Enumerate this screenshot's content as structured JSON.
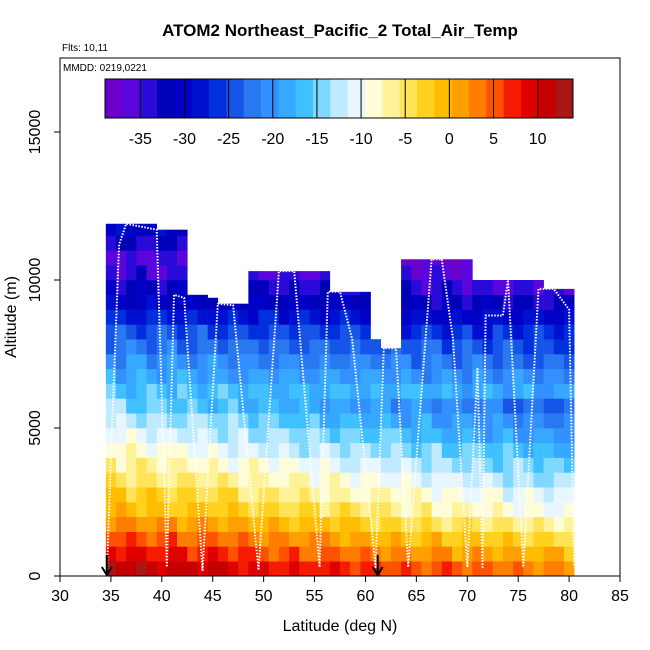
{
  "chart_data": {
    "type": "heatmap",
    "title": "ATOM2 Northeast_Pacific_2 Total_Air_Temp",
    "flights_label": "Flts: 10,11",
    "dates_label": "MMDD: 0219,0221",
    "xlabel": "Latitude (deg N)",
    "ylabel": "Altitude (m)",
    "xlim": [
      30,
      85
    ],
    "ylim": [
      0,
      17500
    ],
    "x_ticks": [
      30,
      35,
      40,
      45,
      50,
      55,
      60,
      65,
      70,
      75,
      80,
      85
    ],
    "y_ticks": [
      0,
      5000,
      10000,
      15000
    ],
    "grid": false,
    "colorbar": {
      "placement": "top-inside",
      "range": [
        -39,
        14
      ],
      "ticks": [
        -35,
        -30,
        -25,
        -20,
        -15,
        -10,
        -5,
        0,
        5,
        10
      ],
      "colors": [
        "#6a00cc",
        "#5b05dd",
        "#2a0ad8",
        "#0000b8",
        "#0000c6",
        "#0010d0",
        "#0030dd",
        "#1655e8",
        "#2a78f0",
        "#3390ff",
        "#36a8ff",
        "#40c0ff",
        "#7fd8ff",
        "#c0eaff",
        "#e8f6ff",
        "#fffcd8",
        "#fff39a",
        "#ffe45a",
        "#ffd21f",
        "#ffbc00",
        "#ff9f00",
        "#ff7e00",
        "#ff5200",
        "#f51a00",
        "#e00000",
        "#c60000",
        "#aa1616"
      ]
    },
    "markers": [
      {
        "name": "arrow",
        "x": 34.6,
        "y": 0
      },
      {
        "name": "arrow",
        "x": 61.2,
        "y": 0
      }
    ],
    "altitude_bins_m": [
      0,
      500,
      1000,
      1500,
      2000,
      2500,
      3000,
      3500,
      4000,
      4500,
      5000,
      5500,
      6000,
      6500,
      7000,
      7500,
      8000,
      8500,
      9000,
      9500,
      10000,
      10500,
      11000,
      11500,
      12000
    ],
    "temperature_profile_c": [
      12,
      9,
      6,
      3,
      0,
      -2,
      -4,
      -6,
      -8,
      -10,
      -12,
      -14,
      -16,
      -18,
      -20,
      -22,
      -24,
      -27,
      -30,
      -32,
      -34,
      -35,
      -33,
      -30
    ],
    "lat_range_deg": [
      34.5,
      80.5
    ],
    "flight_track": {
      "lat": [
        34.6,
        35.0,
        35.8,
        36.5,
        39.5,
        40.5,
        41.2,
        42.2,
        44.0,
        45.5,
        47.0,
        49.5,
        51.5,
        53.0,
        55.5,
        56.3,
        57.5,
        58.7,
        61.0,
        61.8,
        63.0,
        64.2,
        66.5,
        67.5,
        68.6,
        70.0,
        71.0,
        71.5,
        71.8,
        73.5,
        74.0,
        75.5,
        77.0,
        78.5,
        80.0,
        80.5
      ],
      "alt": [
        0,
        4000,
        11200,
        11900,
        11700,
        300,
        9500,
        9400,
        200,
        9200,
        9150,
        200,
        10300,
        10300,
        300,
        9600,
        9600,
        8000,
        300,
        7700,
        7700,
        300,
        10700,
        10700,
        8000,
        300,
        7000,
        300,
        8800,
        8800,
        10000,
        300,
        9700,
        9700,
        9000,
        300
      ]
    }
  }
}
